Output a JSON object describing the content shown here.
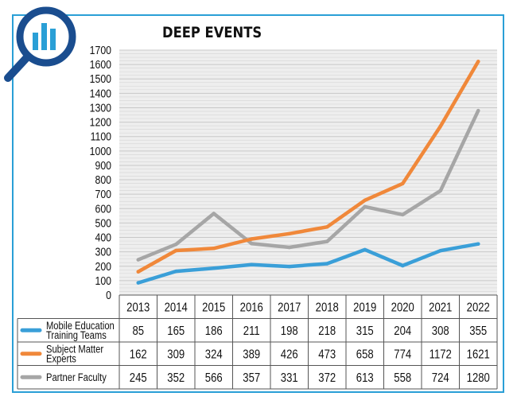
{
  "chart_data": {
    "type": "line",
    "title": "DEEP EVENTS",
    "xlabel": "",
    "ylabel": "",
    "ylim": [
      0,
      1700
    ],
    "yticks": [
      0,
      100,
      200,
      300,
      400,
      500,
      600,
      700,
      800,
      900,
      1000,
      1100,
      1200,
      1300,
      1400,
      1500,
      1600,
      1700
    ],
    "grid": true,
    "legend": "table-left",
    "categories": [
      "2013",
      "2014",
      "2015",
      "2016",
      "2017",
      "2018",
      "2019",
      "2020",
      "2021",
      "2022"
    ],
    "series": [
      {
        "name": "Mobile Education Training Teams",
        "name_lines": [
          "Mobile Education",
          "Training Teams"
        ],
        "color": "#3a9fd8",
        "values": [
          85,
          165,
          186,
          211,
          198,
          218,
          315,
          204,
          308,
          355
        ]
      },
      {
        "name": "Subject Matter Experts",
        "name_lines": [
          "Subject Matter",
          "Experts"
        ],
        "color": "#f0883a",
        "values": [
          162,
          309,
          324,
          389,
          426,
          473,
          658,
          774,
          1172,
          1621
        ]
      },
      {
        "name": "Partner Faculty",
        "name_lines": [
          "Partner Faculty"
        ],
        "color": "#a6a6a6",
        "values": [
          245,
          352,
          566,
          357,
          331,
          372,
          613,
          558,
          724,
          1280
        ]
      }
    ]
  },
  "colors": {
    "frame": "#2a9fd6",
    "icon_ring": "#1a4d8f",
    "icon_bars": "#2a9fd6"
  },
  "icons": {
    "logo": "magnifier-bar-chart-icon"
  }
}
